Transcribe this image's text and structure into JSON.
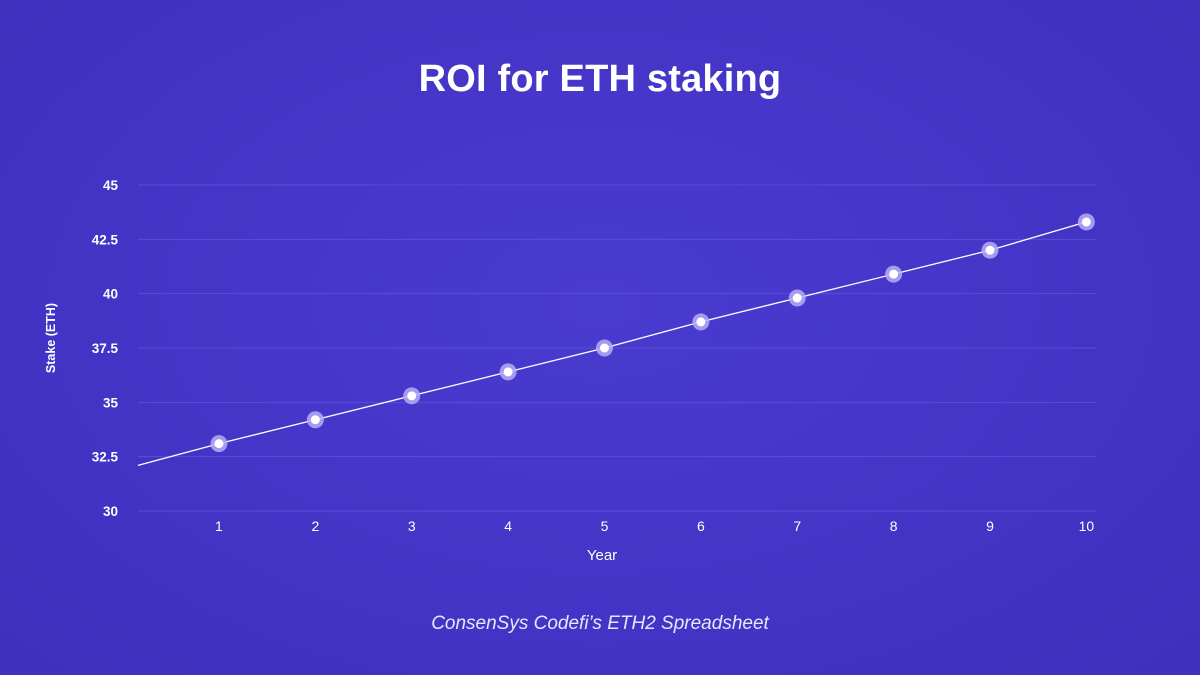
{
  "chart_data": {
    "type": "line",
    "title": "ROI for ETH staking",
    "xlabel": "Year",
    "ylabel": "Stake (ETH)",
    "x": [
      1,
      2,
      3,
      4,
      5,
      6,
      7,
      8,
      9,
      10
    ],
    "xtick_labels": [
      "1",
      "2",
      "3",
      "4",
      "5",
      "6",
      "7",
      "8",
      "9",
      "10"
    ],
    "ytick_values": [
      30,
      32.5,
      35,
      37.5,
      40,
      42.5,
      45
    ],
    "ytick_labels": [
      "30",
      "32.5",
      "35",
      "37.5",
      "40",
      "42.5",
      "45"
    ],
    "xlim": [
      0.16,
      10.1
    ],
    "ylim": [
      30,
      45
    ],
    "series": [
      {
        "values": [
          33.1,
          34.2,
          35.3,
          36.4,
          37.5,
          38.7,
          39.8,
          40.9,
          42.0,
          43.3
        ],
        "line_start": 32.1
      }
    ],
    "grid": true,
    "legend": "none",
    "caption": "ConsenSys Codefi’s ETH2 Spreadsheet",
    "colors": {
      "background": "#4536c8",
      "line": "#ffffff",
      "marker_fill": "#ffffff",
      "marker_ring": "#b7adf5",
      "grid": "#5a4cd6"
    }
  }
}
